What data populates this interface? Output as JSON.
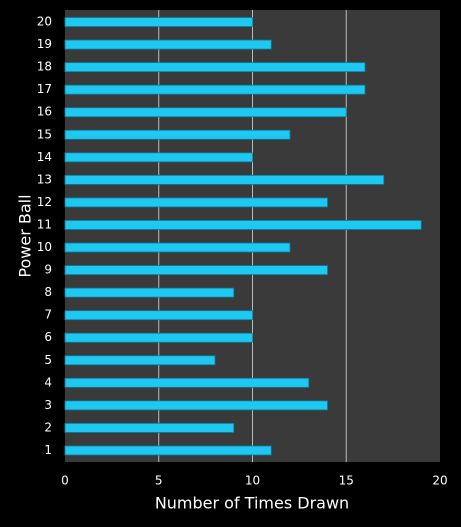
{
  "chart_data": {
    "type": "bar",
    "orientation": "horizontal",
    "xlabel": "Number of Times Drawn",
    "ylabel": "Power Ball",
    "categories": [
      "1",
      "2",
      "3",
      "4",
      "5",
      "6",
      "7",
      "8",
      "9",
      "10",
      "11",
      "12",
      "13",
      "14",
      "15",
      "16",
      "17",
      "18",
      "19",
      "20"
    ],
    "values": [
      11,
      9,
      14,
      13,
      8,
      10,
      10,
      9,
      14,
      12,
      19,
      14,
      17,
      10,
      12,
      15,
      16,
      16,
      11,
      10
    ],
    "color": "#1ec8f0",
    "xlim": [
      0,
      20
    ],
    "xticks": [
      0,
      5,
      10,
      15,
      20
    ],
    "grid": true
  }
}
